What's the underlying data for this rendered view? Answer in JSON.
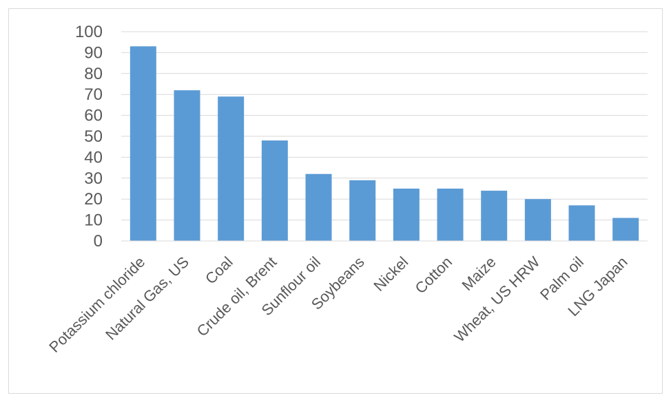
{
  "chart_data": {
    "type": "bar",
    "categories": [
      "Potassium chloride",
      "Natural Gas, US",
      "Coal",
      "Crude oil, Brent",
      "Sunflour oil",
      "Soybeans",
      "Nickel",
      "Cotton",
      "Maize",
      "Wheat, US HRW",
      "Palm oil",
      "LNG Japan"
    ],
    "values": [
      93,
      72,
      69,
      48,
      32,
      29,
      25,
      25,
      24,
      20,
      17,
      11
    ],
    "title": "",
    "xlabel": "",
    "ylabel": "",
    "ylim": [
      0,
      100
    ],
    "yticks": [
      0,
      10,
      20,
      30,
      40,
      50,
      60,
      70,
      80,
      90,
      100
    ],
    "grid": true,
    "legend": "none",
    "bar_color": "#5b9bd5"
  }
}
